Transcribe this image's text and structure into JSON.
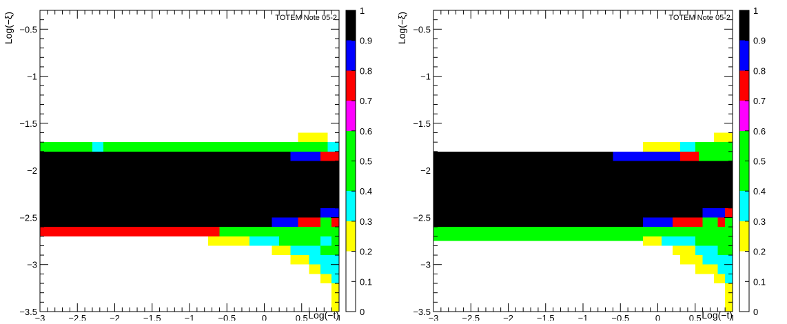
{
  "chart_data": [
    {
      "type": "heatmap",
      "annotation": "TOTEM Note 05-2",
      "xlabel": "Log(−t)",
      "ylabel": "Log(−ξ)",
      "xlim": [
        -3,
        1
      ],
      "ylim": [
        -3.5,
        -0.3
      ],
      "x_ticks": [
        "−3",
        "−2.5",
        "−2",
        "−1.5",
        "−1",
        "−0.5",
        "0",
        "0.5",
        "1"
      ],
      "y_ticks": [
        "−3.5",
        "−3",
        "−2.5",
        "−2",
        "−1.5",
        "−1",
        "−0.5"
      ],
      "colorbar": {
        "range": [
          0,
          1
        ],
        "tick_labels": [
          "0",
          "0.1",
          "0.2",
          "0.3",
          "0.4",
          "0.5",
          "0.6",
          "0.7",
          "0.8",
          "0.9",
          "1"
        ],
        "colors": [
          "#ffffff",
          "#ffffff",
          "#ffff00",
          "#00ffff",
          "#00ff00",
          "#00ff00",
          "#ff00ff",
          "#ff0000",
          "#0000ff",
          "#000000"
        ]
      },
      "cells": [
        {
          "x": [
            -3,
            1
          ],
          "y": [
            -2.6,
            -1.8
          ],
          "value": 0.95
        },
        {
          "x": [
            -3,
            -2.3
          ],
          "y": [
            -1.8,
            -1.7
          ],
          "value": 0.45
        },
        {
          "x": [
            -2.3,
            -2.15
          ],
          "y": [
            -1.8,
            -1.7
          ],
          "value": 0.3
        },
        {
          "x": [
            -2.15,
            0.85
          ],
          "y": [
            -1.8,
            -1.7
          ],
          "value": 0.45
        },
        {
          "x": [
            0.85,
            1
          ],
          "y": [
            -1.8,
            -1.7
          ],
          "value": 0.3
        },
        {
          "x": [
            0.45,
            0.85
          ],
          "y": [
            -1.7,
            -1.6
          ],
          "value": 0.2
        },
        {
          "x": [
            0.35,
            0.75
          ],
          "y": [
            -1.9,
            -1.8
          ],
          "value": 0.85
        },
        {
          "x": [
            0.75,
            1
          ],
          "y": [
            -1.9,
            -1.8
          ],
          "value": 0.75
        },
        {
          "x": [
            0.75,
            1
          ],
          "y": [
            -2.5,
            -2.4
          ],
          "value": 0.85
        },
        {
          "x": [
            0.1,
            0.45
          ],
          "y": [
            -2.6,
            -2.5
          ],
          "value": 0.85
        },
        {
          "x": [
            0.45,
            0.75
          ],
          "y": [
            -2.6,
            -2.5
          ],
          "value": 0.75
        },
        {
          "x": [
            0.75,
            0.9
          ],
          "y": [
            -2.6,
            -2.5
          ],
          "value": 0.55
        },
        {
          "x": [
            0.9,
            1
          ],
          "y": [
            -2.6,
            -2.5
          ],
          "value": 0.75
        },
        {
          "x": [
            -3,
            -0.6
          ],
          "y": [
            -2.7,
            -2.6
          ],
          "value": 0.75
        },
        {
          "x": [
            -0.6,
            0.75
          ],
          "y": [
            -2.7,
            -2.6
          ],
          "value": 0.55
        },
        {
          "x": [
            0.75,
            1
          ],
          "y": [
            -2.7,
            -2.6
          ],
          "value": 0.45
        },
        {
          "x": [
            -0.75,
            -0.2
          ],
          "y": [
            -2.8,
            -2.7
          ],
          "value": 0.2
        },
        {
          "x": [
            -0.2,
            0.2
          ],
          "y": [
            -2.8,
            -2.7
          ],
          "value": 0.3
        },
        {
          "x": [
            0.2,
            0.75
          ],
          "y": [
            -2.8,
            -2.7
          ],
          "value": 0.45
        },
        {
          "x": [
            0.75,
            0.9
          ],
          "y": [
            -2.8,
            -2.7
          ],
          "value": 0.3
        },
        {
          "x": [
            0.9,
            1
          ],
          "y": [
            -2.8,
            -2.7
          ],
          "value": 0.45
        },
        {
          "x": [
            0.1,
            0.35
          ],
          "y": [
            -2.9,
            -2.8
          ],
          "value": 0.2
        },
        {
          "x": [
            0.35,
            0.75
          ],
          "y": [
            -2.9,
            -2.8
          ],
          "value": 0.3
        },
        {
          "x": [
            0.75,
            1
          ],
          "y": [
            -2.9,
            -2.8
          ],
          "value": 0.45
        },
        {
          "x": [
            0.35,
            0.6
          ],
          "y": [
            -3.0,
            -2.9
          ],
          "value": 0.2
        },
        {
          "x": [
            0.6,
            1
          ],
          "y": [
            -3.0,
            -2.9
          ],
          "value": 0.3
        },
        {
          "x": [
            0.6,
            0.75
          ],
          "y": [
            -3.1,
            -3.0
          ],
          "value": 0.2
        },
        {
          "x": [
            0.75,
            1
          ],
          "y": [
            -3.1,
            -3.0
          ],
          "value": 0.3
        },
        {
          "x": [
            0.75,
            0.9
          ],
          "y": [
            -3.2,
            -3.1
          ],
          "value": 0.2
        },
        {
          "x": [
            0.9,
            1
          ],
          "y": [
            -3.2,
            -3.1
          ],
          "value": 0.3
        },
        {
          "x": [
            0.9,
            1
          ],
          "y": [
            -3.5,
            -3.2
          ],
          "value": 0.2
        }
      ]
    },
    {
      "type": "heatmap",
      "annotation": "TOTEM Note 05-2",
      "xlabel": "Log(−t)",
      "ylabel": "Log(−ξ)",
      "xlim": [
        -3,
        1
      ],
      "ylim": [
        -3.5,
        -0.3
      ],
      "x_ticks": [
        "−3",
        "−2.5",
        "−2",
        "−1.5",
        "−1",
        "−0.5",
        "0",
        "0.5",
        "1"
      ],
      "y_ticks": [
        "−3.5",
        "−3",
        "−2.5",
        "−2",
        "−1.5",
        "−1",
        "−0.5"
      ],
      "colorbar": {
        "range": [
          0,
          1
        ],
        "tick_labels": [
          "0",
          "0.1",
          "0.2",
          "0.3",
          "0.4",
          "0.5",
          "0.6",
          "0.7",
          "0.8",
          "0.9",
          "1"
        ],
        "colors": [
          "#ffffff",
          "#ffffff",
          "#ffff00",
          "#00ffff",
          "#00ff00",
          "#00ff00",
          "#ff00ff",
          "#ff0000",
          "#0000ff",
          "#000000"
        ]
      },
      "cells": [
        {
          "x": [
            -3,
            1
          ],
          "y": [
            -2.6,
            -1.8
          ],
          "value": 0.95
        },
        {
          "x": [
            0.75,
            1
          ],
          "y": [
            -1.7,
            -1.6
          ],
          "value": 0.2
        },
        {
          "x": [
            -0.2,
            0.3
          ],
          "y": [
            -1.8,
            -1.7
          ],
          "value": 0.2
        },
        {
          "x": [
            0.3,
            0.5
          ],
          "y": [
            -1.8,
            -1.7
          ],
          "value": 0.3
        },
        {
          "x": [
            0.5,
            1
          ],
          "y": [
            -1.8,
            -1.7
          ],
          "value": 0.45
        },
        {
          "x": [
            -0.6,
            0.3
          ],
          "y": [
            -1.9,
            -1.8
          ],
          "value": 0.85
        },
        {
          "x": [
            0.3,
            0.55
          ],
          "y": [
            -1.9,
            -1.8
          ],
          "value": 0.75
        },
        {
          "x": [
            0.55,
            1
          ],
          "y": [
            -1.9,
            -1.8
          ],
          "value": 0.55
        },
        {
          "x": [
            0.6,
            0.9
          ],
          "y": [
            -2.5,
            -2.4
          ],
          "value": 0.85
        },
        {
          "x": [
            0.9,
            1
          ],
          "y": [
            -2.5,
            -2.4
          ],
          "value": 0.75
        },
        {
          "x": [
            -0.2,
            0.2
          ],
          "y": [
            -2.6,
            -2.5
          ],
          "value": 0.85
        },
        {
          "x": [
            0.2,
            0.6
          ],
          "y": [
            -2.6,
            -2.5
          ],
          "value": 0.75
        },
        {
          "x": [
            0.6,
            0.8
          ],
          "y": [
            -2.6,
            -2.5
          ],
          "value": 0.55
        },
        {
          "x": [
            0.8,
            0.9
          ],
          "y": [
            -2.6,
            -2.5
          ],
          "value": 0.75
        },
        {
          "x": [
            0.9,
            1
          ],
          "y": [
            -2.6,
            -2.5
          ],
          "value": 0.55
        },
        {
          "x": [
            -3,
            0.8
          ],
          "y": [
            -2.7,
            -2.6
          ],
          "value": 0.45
        },
        {
          "x": [
            0.8,
            0.9
          ],
          "y": [
            -2.7,
            -2.6
          ],
          "value": 0.55
        },
        {
          "x": [
            0.9,
            1
          ],
          "y": [
            -2.7,
            -2.6
          ],
          "value": 0.55
        },
        {
          "x": [
            -3,
            0.5
          ],
          "y": [
            -2.75,
            -2.7
          ],
          "value": 0.45
        },
        {
          "x": [
            -0.2,
            0.05
          ],
          "y": [
            -2.8,
            -2.7
          ],
          "value": 0.2
        },
        {
          "x": [
            0.05,
            0.5
          ],
          "y": [
            -2.8,
            -2.7
          ],
          "value": 0.3
        },
        {
          "x": [
            0.5,
            1
          ],
          "y": [
            -2.8,
            -2.7
          ],
          "value": 0.45
        },
        {
          "x": [
            0.2,
            0.5
          ],
          "y": [
            -2.9,
            -2.8
          ],
          "value": 0.2
        },
        {
          "x": [
            0.5,
            0.8
          ],
          "y": [
            -2.9,
            -2.8
          ],
          "value": 0.3
        },
        {
          "x": [
            0.8,
            1
          ],
          "y": [
            -2.9,
            -2.8
          ],
          "value": 0.45
        },
        {
          "x": [
            0.3,
            0.6
          ],
          "y": [
            -3.0,
            -2.9
          ],
          "value": 0.2
        },
        {
          "x": [
            0.6,
            1
          ],
          "y": [
            -3.0,
            -2.9
          ],
          "value": 0.3
        },
        {
          "x": [
            0.5,
            0.8
          ],
          "y": [
            -3.1,
            -3.0
          ],
          "value": 0.2
        },
        {
          "x": [
            0.8,
            1
          ],
          "y": [
            -3.1,
            -3.0
          ],
          "value": 0.3
        },
        {
          "x": [
            0.75,
            0.9
          ],
          "y": [
            -3.2,
            -3.1
          ],
          "value": 0.2
        },
        {
          "x": [
            0.9,
            1
          ],
          "y": [
            -3.2,
            -3.1
          ],
          "value": 0.3
        },
        {
          "x": [
            0.9,
            1
          ],
          "y": [
            -3.5,
            -3.2
          ],
          "value": 0.2
        }
      ]
    }
  ]
}
